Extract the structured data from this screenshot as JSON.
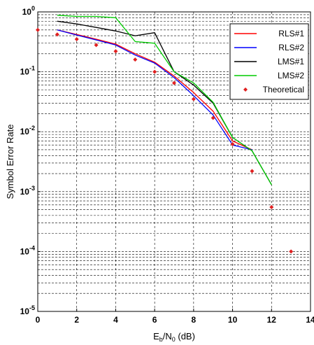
{
  "chart_data": {
    "type": "line",
    "xlabel": {
      "main": "E",
      "sub1": "b",
      "mid": "/N",
      "sub2": "0",
      "tail": " (dB)"
    },
    "ylabel": "Symbol Error Rate",
    "xlim": [
      0,
      14
    ],
    "ylim": [
      1e-05,
      1
    ],
    "yscale": "log",
    "x_ticks": [
      "0",
      "2",
      "4",
      "6",
      "8",
      "10",
      "12",
      "14"
    ],
    "y_ticks": [
      {
        "base": "10",
        "exp": "0"
      },
      {
        "base": "10",
        "exp": "-1"
      },
      {
        "base": "10",
        "exp": "-2"
      },
      {
        "base": "10",
        "exp": "-3"
      },
      {
        "base": "10",
        "exp": "-4"
      },
      {
        "base": "10",
        "exp": "-5"
      }
    ],
    "grid": true,
    "legend_position": "top-right",
    "series": [
      {
        "name": "RLS#1",
        "color": "#ff0000",
        "style": "line",
        "x": [
          1,
          2,
          3,
          4,
          5,
          6,
          7,
          8,
          9,
          10,
          11,
          12
        ],
        "y": [
          0.5,
          0.42,
          0.35,
          0.29,
          0.2,
          0.145,
          0.085,
          0.045,
          0.022,
          0.007,
          0.005,
          null
        ]
      },
      {
        "name": "RLS#2",
        "color": "#0000ff",
        "style": "line",
        "x": [
          1,
          2,
          3,
          4,
          5,
          6,
          7,
          8,
          9,
          10,
          11,
          12
        ],
        "y": [
          0.5,
          0.41,
          0.34,
          0.28,
          0.19,
          0.14,
          0.08,
          0.04,
          0.019,
          0.006,
          0.005,
          null
        ]
      },
      {
        "name": "LMS#1",
        "color": "#000000",
        "style": "line",
        "x": [
          1,
          2,
          3,
          4,
          5,
          6,
          7,
          8,
          9,
          10,
          11,
          12
        ],
        "y": [
          0.7,
          0.63,
          0.55,
          0.48,
          0.4,
          0.45,
          0.1,
          0.06,
          0.03,
          0.008,
          0.0048,
          0.0013
        ]
      },
      {
        "name": "LMS#2",
        "color": "#00cc00",
        "style": "line",
        "x": [
          1,
          2,
          3,
          4,
          5,
          6,
          7,
          8,
          9,
          10,
          11,
          12
        ],
        "y": [
          0.88,
          0.84,
          0.84,
          0.8,
          0.32,
          0.3,
          0.1,
          0.065,
          0.031,
          0.008,
          0.0048,
          0.0013
        ]
      },
      {
        "name": "Theoretical",
        "color": "#e02020",
        "style": "marker",
        "x": [
          0,
          1,
          2,
          3,
          4,
          5,
          6,
          7,
          8,
          9,
          10,
          11,
          12,
          13
        ],
        "y": [
          0.5,
          0.42,
          0.35,
          0.28,
          0.22,
          0.16,
          0.1,
          0.065,
          0.035,
          0.017,
          0.0062,
          0.0022,
          0.00055,
          0.0001
        ]
      }
    ]
  }
}
